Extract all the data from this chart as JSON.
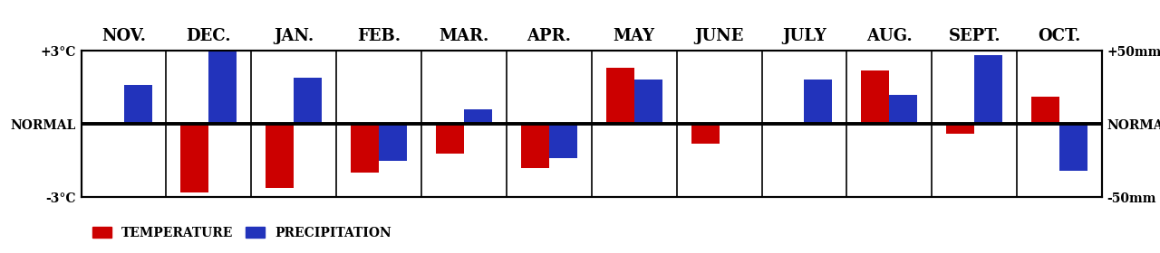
{
  "months": [
    "NOV.",
    "DEC.",
    "JAN.",
    "FEB.",
    "MAR.",
    "APR.",
    "MAY",
    "JUNE",
    "JULY",
    "AUG.",
    "SEPT.",
    "OCT."
  ],
  "temperature": [
    0.0,
    -2.8,
    -2.6,
    -2.0,
    -1.2,
    -1.8,
    2.3,
    -0.8,
    0.0,
    2.2,
    -0.4,
    1.1
  ],
  "precipitation": [
    1.6,
    3.0,
    1.9,
    -1.5,
    0.6,
    -1.4,
    1.8,
    0.0,
    1.8,
    1.2,
    2.8,
    -1.9
  ],
  "temp_color": "#cc0000",
  "precip_color": "#2233bb",
  "ylim": [
    -3,
    3
  ],
  "y_left_labels": [
    "+3°C",
    "NORMAL",
    "-3°C"
  ],
  "y_right_labels": [
    "+50mm",
    "NORMAL",
    "-50mm"
  ],
  "legend_temp": "TEMPERATURE",
  "legend_precip": "PRECIPITATION",
  "background_color": "#ffffff",
  "bar_width": 0.33,
  "title_fontsize": 13,
  "tick_fontsize": 11,
  "ylabel_fontsize": 10,
  "legend_fontsize": 10
}
